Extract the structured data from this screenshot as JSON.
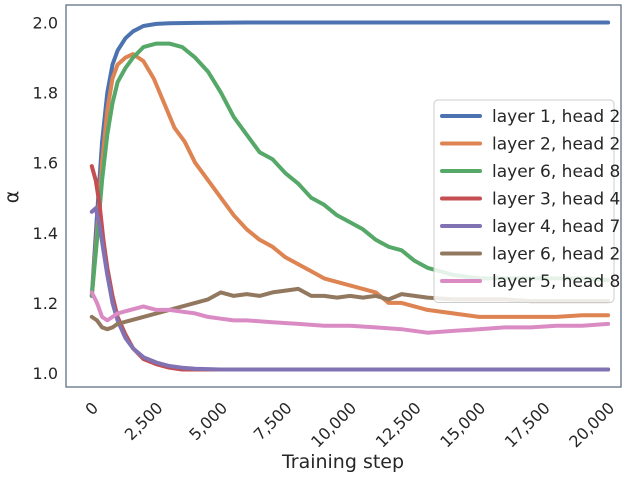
{
  "chart_data": {
    "type": "line",
    "title": "",
    "xlabel": "Training step",
    "ylabel": "α",
    "xlim": [
      -1000,
      20500
    ],
    "ylim": [
      0.96,
      2.05
    ],
    "xticks": [
      0,
      2500,
      5000,
      7500,
      10000,
      12500,
      15000,
      17500,
      20000
    ],
    "xtick_labels": [
      "0",
      "2,500",
      "5,000",
      "7,500",
      "10,000",
      "12,500",
      "15,000",
      "17,500",
      "20,000"
    ],
    "yticks": [
      1.0,
      1.2,
      1.4,
      1.6,
      1.8,
      2.0
    ],
    "ytick_labels": [
      "1.0",
      "1.2",
      "1.4",
      "1.6",
      "1.8",
      "2.0"
    ],
    "grid": false,
    "legend_position": "center-right",
    "series": [
      {
        "name": "layer 1, head 2",
        "color": "#4c72b0",
        "x": [
          0,
          200,
          400,
          600,
          800,
          1000,
          1300,
          1600,
          2000,
          2500,
          3000,
          4000,
          6000,
          10000,
          15000,
          20000
        ],
        "y": [
          1.22,
          1.45,
          1.66,
          1.8,
          1.88,
          1.92,
          1.955,
          1.975,
          1.99,
          1.996,
          1.998,
          1.999,
          2.0,
          2.0,
          2.0,
          2.0
        ]
      },
      {
        "name": "layer 2, head 2",
        "color": "#dd8452",
        "x": [
          0,
          200,
          400,
          600,
          800,
          1000,
          1300,
          1600,
          2000,
          2400,
          2800,
          3200,
          3600,
          4000,
          4500,
          5000,
          5500,
          6000,
          6500,
          7000,
          7500,
          8000,
          8500,
          9000,
          9500,
          10000,
          10500,
          11000,
          11500,
          12000,
          12500,
          13000,
          14000,
          15000,
          16000,
          17000,
          18000,
          19000,
          20000
        ],
        "y": [
          1.22,
          1.4,
          1.6,
          1.75,
          1.84,
          1.88,
          1.9,
          1.91,
          1.89,
          1.84,
          1.77,
          1.7,
          1.66,
          1.6,
          1.55,
          1.5,
          1.45,
          1.41,
          1.38,
          1.36,
          1.33,
          1.31,
          1.29,
          1.27,
          1.26,
          1.25,
          1.24,
          1.23,
          1.2,
          1.2,
          1.19,
          1.18,
          1.17,
          1.16,
          1.16,
          1.16,
          1.16,
          1.165,
          1.165
        ]
      },
      {
        "name": "layer 6, head 8",
        "color": "#55a868",
        "x": [
          0,
          200,
          400,
          600,
          800,
          1000,
          1300,
          1600,
          2000,
          2500,
          3000,
          3500,
          4000,
          4500,
          5000,
          5500,
          6000,
          6500,
          7000,
          7500,
          8000,
          8500,
          9000,
          9500,
          10000,
          10500,
          11000,
          11500,
          12000,
          12500,
          13000,
          13500,
          14000,
          15000,
          16000,
          17000,
          18000,
          19000,
          20000
        ],
        "y": [
          1.22,
          1.38,
          1.55,
          1.68,
          1.77,
          1.83,
          1.87,
          1.9,
          1.93,
          1.94,
          1.94,
          1.93,
          1.9,
          1.86,
          1.8,
          1.73,
          1.68,
          1.63,
          1.61,
          1.57,
          1.54,
          1.5,
          1.48,
          1.45,
          1.43,
          1.41,
          1.38,
          1.36,
          1.35,
          1.32,
          1.3,
          1.29,
          1.28,
          1.27,
          1.27,
          1.27,
          1.27,
          1.27,
          1.265
        ]
      },
      {
        "name": "layer 3, head 4",
        "color": "#c44e52",
        "x": [
          0,
          150,
          300,
          450,
          600,
          800,
          1000,
          1300,
          1600,
          2000,
          2500,
          3000,
          3500,
          4000,
          5000,
          7000,
          10000,
          15000,
          20000
        ],
        "y": [
          1.59,
          1.55,
          1.48,
          1.38,
          1.3,
          1.22,
          1.16,
          1.11,
          1.07,
          1.04,
          1.025,
          1.015,
          1.01,
          1.01,
          1.01,
          1.01,
          1.01,
          1.01,
          1.01
        ]
      },
      {
        "name": "layer 4, head 7",
        "color": "#8172b3",
        "x": [
          0,
          150,
          300,
          450,
          600,
          800,
          1000,
          1300,
          1600,
          2000,
          2500,
          3000,
          3500,
          4000,
          5000,
          7000,
          10000,
          15000,
          20000
        ],
        "y": [
          1.46,
          1.47,
          1.42,
          1.35,
          1.28,
          1.2,
          1.15,
          1.1,
          1.07,
          1.045,
          1.03,
          1.02,
          1.015,
          1.012,
          1.01,
          1.01,
          1.01,
          1.01,
          1.01
        ]
      },
      {
        "name": "layer 6, head 2",
        "color": "#937860",
        "x": [
          0,
          200,
          400,
          600,
          800,
          1000,
          1500,
          2000,
          2500,
          3000,
          3500,
          4000,
          4500,
          5000,
          5500,
          6000,
          6500,
          7000,
          7500,
          8000,
          8500,
          9000,
          9500,
          10000,
          10500,
          11000,
          11500,
          12000,
          12500,
          13000,
          14000,
          15000,
          16000,
          17000,
          18000,
          19000,
          20000
        ],
        "y": [
          1.16,
          1.15,
          1.13,
          1.125,
          1.13,
          1.14,
          1.15,
          1.16,
          1.17,
          1.18,
          1.19,
          1.2,
          1.21,
          1.23,
          1.22,
          1.225,
          1.22,
          1.23,
          1.235,
          1.24,
          1.22,
          1.22,
          1.215,
          1.22,
          1.215,
          1.22,
          1.21,
          1.225,
          1.22,
          1.215,
          1.21,
          1.21,
          1.21,
          1.205,
          1.205,
          1.205,
          1.205
        ]
      },
      {
        "name": "layer 5, head 8",
        "color": "#da8bc3",
        "x": [
          0,
          200,
          400,
          600,
          800,
          1000,
          1500,
          2000,
          2500,
          3000,
          3500,
          4000,
          4500,
          5000,
          5500,
          6000,
          7000,
          8000,
          9000,
          10000,
          11000,
          12000,
          13000,
          14000,
          15000,
          16000,
          17000,
          18000,
          19000,
          20000
        ],
        "y": [
          1.23,
          1.2,
          1.16,
          1.15,
          1.16,
          1.17,
          1.18,
          1.19,
          1.18,
          1.18,
          1.175,
          1.17,
          1.16,
          1.155,
          1.15,
          1.15,
          1.145,
          1.14,
          1.135,
          1.135,
          1.13,
          1.125,
          1.115,
          1.12,
          1.125,
          1.13,
          1.13,
          1.135,
          1.135,
          1.14
        ]
      }
    ]
  }
}
